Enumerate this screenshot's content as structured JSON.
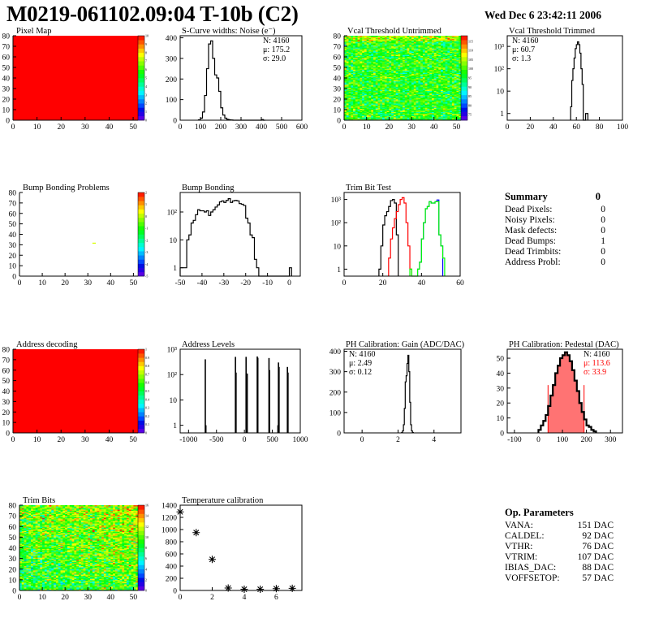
{
  "header": {
    "title": "M0219-061102.09:04 T-10b (C2)",
    "date": "Wed Dec  6 23:42:11 2006"
  },
  "summary": {
    "title": "Summary",
    "value": "0",
    "rows": [
      {
        "label": "Dead Pixels:",
        "value": "0"
      },
      {
        "label": "Noisy Pixels:",
        "value": "0"
      },
      {
        "label": "Mask defects:",
        "value": "0"
      },
      {
        "label": "Dead Bumps:",
        "value": "1"
      },
      {
        "label": "Dead Trimbits:",
        "value": "0"
      },
      {
        "label": "Address Probl:",
        "value": "0"
      }
    ]
  },
  "op_parameters": {
    "title": "Op. Parameters",
    "rows": [
      {
        "label": "VANA:",
        "value": "151 DAC"
      },
      {
        "label": "CALDEL:",
        "value": "92 DAC"
      },
      {
        "label": "VTHR:",
        "value": "76 DAC"
      },
      {
        "label": "VTRIM:",
        "value": "107 DAC"
      },
      {
        "label": "IBIAS_DAC:",
        "value": "88 DAC"
      },
      {
        "label": "VOFFSETOP:",
        "value": "57 DAC"
      }
    ]
  },
  "colors": {
    "palette": "rainbow purple-to-red",
    "hist_line": "#000000",
    "pedestal_fill": "#ff0000",
    "trim_series": [
      "#000000",
      "#ff0000",
      "#0000ff",
      "#00ff00"
    ]
  },
  "chart_data": [
    {
      "id": "pixel-map",
      "type": "heatmap",
      "title": "Pixel Map",
      "xlim": [
        0,
        52
      ],
      "ylim": [
        0,
        80
      ],
      "xticks": [
        "0",
        "10",
        "20",
        "30",
        "40",
        "50"
      ],
      "yticks": [
        "0",
        "10",
        "20",
        "30",
        "40",
        "50",
        "60",
        "70",
        "80"
      ],
      "zlim": [
        0,
        10
      ],
      "zticks": [
        "0",
        "1",
        "2",
        "3",
        "4",
        "5",
        "6",
        "7",
        "8",
        "9",
        "10"
      ],
      "uniform_value": 10
    },
    {
      "id": "noise",
      "type": "bar",
      "title": "S-Curve widths: Noise (e⁻)",
      "xlim": [
        0,
        600
      ],
      "ylim": [
        0,
        410
      ],
      "xticks": [
        "0",
        "100",
        "200",
        "300",
        "400",
        "500",
        "600"
      ],
      "yticks": [
        "0",
        "100",
        "200",
        "300",
        "400"
      ],
      "series": [
        {
          "x_start": 90,
          "bin": 10,
          "values": [
            2,
            10,
            40,
            120,
            250,
            370,
            385,
            300,
            220,
            205,
            140,
            60,
            25,
            10,
            4,
            2,
            1,
            0,
            0,
            0,
            0,
            0,
            0,
            0,
            0,
            0,
            0,
            0,
            0,
            0,
            0,
            3,
            0
          ]
        }
      ],
      "stats": [
        "N: 4160",
        "μ: 175.2",
        "σ: 29.0"
      ],
      "stats_pos": "top-right"
    },
    {
      "id": "vcal-untrimmed",
      "type": "heatmap",
      "title": "Vcal Threshold Untrimmed",
      "xlim": [
        0,
        52
      ],
      "ylim": [
        0,
        80
      ],
      "xticks": [
        "0",
        "10",
        "20",
        "30",
        "40",
        "50"
      ],
      "yticks": [
        "0",
        "10",
        "20",
        "30",
        "40",
        "50",
        "60",
        "70",
        "80"
      ],
      "zlim": [
        72,
        118
      ],
      "zticks": [
        "75",
        "80",
        "85",
        "90",
        "95",
        "100",
        "105",
        "110",
        "115"
      ],
      "z_mean": 98,
      "z_spread": 5
    },
    {
      "id": "vcal-trimmed",
      "type": "bar",
      "log_y": true,
      "title": "Vcal Threshold Trimmed",
      "xlim": [
        0,
        100
      ],
      "ylim": [
        0.5,
        3000
      ],
      "xticks": [
        "0",
        "20",
        "40",
        "60",
        "80",
        "100"
      ],
      "yticks": [
        {
          "v": 1,
          "t": "1"
        },
        {
          "v": 10,
          "t": "10"
        },
        {
          "v": 100,
          "t": "10²"
        },
        {
          "v": 1000,
          "t": "10³"
        }
      ],
      "series": [
        {
          "x_start": 55,
          "bin": 1,
          "values": [
            2,
            30,
            100,
            300,
            800,
            1200,
            1600,
            1200,
            500,
            100,
            20,
            0,
            0,
            1,
            1
          ]
        }
      ],
      "stats": [
        "N: 4160",
        "μ: 60.7",
        "σ:  1.3"
      ],
      "stats_pos": "top-left"
    },
    {
      "id": "bump-problems",
      "type": "heatmap",
      "title": "Bump Bonding Problems",
      "xlim": [
        0,
        52
      ],
      "ylim": [
        0,
        80
      ],
      "xticks": [
        "0",
        "10",
        "20",
        "30",
        "40",
        "50"
      ],
      "yticks": [
        "0",
        "10",
        "20",
        "30",
        "40",
        "50",
        "60",
        "70",
        "80"
      ],
      "zlim": [
        -5,
        2
      ],
      "zticks": [
        "-5",
        "-4",
        "-3",
        "-2",
        "-1",
        "0",
        "1",
        "2"
      ],
      "cells": [
        [
          32,
          31,
          0.2
        ]
      ]
    },
    {
      "id": "bump-bonding",
      "type": "bar",
      "log_y": true,
      "title": "Bump Bonding",
      "xlim": [
        -50,
        5
      ],
      "ylim": [
        0.5,
        500
      ],
      "xticks": [
        "-50",
        "-40",
        "-30",
        "-20",
        "-10",
        "0"
      ],
      "yticks": [
        {
          "v": 1,
          "t": "1"
        },
        {
          "v": 10,
          "t": "10"
        },
        {
          "v": 100,
          "t": "10²"
        }
      ],
      "series": [
        {
          "x_start": -50,
          "bin": 1,
          "values": [
            1,
            1,
            1,
            10,
            15,
            40,
            50,
            80,
            120,
            110,
            110,
            100,
            110,
            75,
            100,
            120,
            150,
            180,
            230,
            250,
            220,
            260,
            300,
            220,
            250,
            260,
            250,
            200,
            190,
            170,
            60,
            40,
            15,
            12,
            2,
            1,
            0,
            0,
            0,
            0,
            0,
            0,
            0,
            0,
            0,
            0,
            0,
            0,
            0,
            0,
            1
          ]
        }
      ]
    },
    {
      "id": "trim-bit-test",
      "type": "bar",
      "log_y": true,
      "title": "Trim Bit Test",
      "xlim": [
        0,
        60
      ],
      "ylim": [
        0.5,
        2000
      ],
      "xticks": [
        "0",
        "20",
        "40",
        "60"
      ],
      "yticks": [
        {
          "v": 1,
          "t": "1"
        },
        {
          "v": 10,
          "t": "10"
        },
        {
          "v": 100,
          "t": "10²"
        },
        {
          "v": 1000,
          "t": "10³"
        }
      ],
      "series": [
        {
          "color": "#000000",
          "x_start": 18,
          "bin": 1,
          "values": [
            1,
            10,
            80,
            200,
            300,
            500,
            900,
            1000,
            700,
            30
          ]
        },
        {
          "color": "#ff0000",
          "x_start": 23,
          "bin": 1,
          "values": [
            3,
            20,
            60,
            150,
            300,
            600,
            1000,
            1200,
            700,
            100,
            10,
            1
          ]
        },
        {
          "color": "#0000ff",
          "x_start": 38,
          "bin": 1,
          "values": [
            1,
            2,
            20,
            100,
            400,
            500,
            800,
            700,
            700,
            800,
            950,
            30,
            10
          ]
        },
        {
          "color": "#00ff00",
          "x_start": 34,
          "bin": 1,
          "values": [
            1,
            0,
            0,
            0,
            1,
            2,
            20,
            100,
            400,
            500,
            800,
            700,
            700,
            800,
            800,
            30,
            10,
            3
          ]
        }
      ]
    },
    {
      "id": "address-decoding",
      "type": "heatmap",
      "title": "Address decoding",
      "xlim": [
        0,
        52
      ],
      "ylim": [
        0,
        80
      ],
      "xticks": [
        "0",
        "10",
        "20",
        "30",
        "40",
        "50"
      ],
      "yticks": [
        "0",
        "10",
        "20",
        "30",
        "40",
        "50",
        "60",
        "70",
        "80"
      ],
      "zlim": [
        0,
        1
      ],
      "zticks": [
        "0",
        "0.1",
        "0.2",
        "0.3",
        "0.4",
        "0.5",
        "0.6",
        "0.7",
        "0.8",
        "0.9",
        "1"
      ],
      "uniform_value": 1
    },
    {
      "id": "address-levels",
      "type": "spikes",
      "log_y": true,
      "title": "Address Levels",
      "xlim": [
        -1150,
        1000
      ],
      "ylim": [
        0.5,
        1000
      ],
      "xticks": [
        "-1000",
        "-500",
        "0",
        "500",
        "1000"
      ],
      "yticks": [
        {
          "v": 1,
          "t": "1"
        },
        {
          "v": 10,
          "t": "10"
        },
        {
          "v": 100,
          "t": "10²"
        },
        {
          "v": 1000,
          "t": "10³"
        }
      ],
      "spikes": [
        [
          -700,
          400
        ],
        [
          -690,
          1
        ],
        [
          -160,
          500
        ],
        [
          -150,
          120
        ],
        [
          30,
          500
        ],
        [
          50,
          110
        ],
        [
          230,
          520
        ],
        [
          240,
          460
        ],
        [
          440,
          450
        ],
        [
          450,
          150
        ],
        [
          600,
          1
        ],
        [
          610,
          300
        ],
        [
          620,
          200
        ],
        [
          770,
          200
        ],
        [
          780,
          120
        ]
      ]
    },
    {
      "id": "ph-gain",
      "type": "bar",
      "title": "PH Calibration: Gain (ADC/DAC)",
      "xlim": [
        -1,
        5.5
      ],
      "ylim": [
        0,
        410
      ],
      "xticks": [
        "0",
        "2",
        "4"
      ],
      "yticks": [
        "0",
        "100",
        "200",
        "300",
        "400"
      ],
      "series": [
        {
          "x_start": 2.2,
          "bin": 0.05,
          "values": [
            2,
            10,
            40,
            120,
            250,
            280,
            340,
            380,
            300,
            150,
            40,
            10,
            2
          ]
        }
      ],
      "stats": [
        "N: 4160",
        "μ: 2.49",
        "σ: 0.12"
      ],
      "stats_pos": "top-left"
    },
    {
      "id": "ph-pedestal",
      "type": "bar",
      "title": "PH Calibration: Pedestal (DAC)",
      "xlim": [
        -130,
        350
      ],
      "ylim": [
        0,
        56
      ],
      "xticks": [
        "-100",
        "0",
        "100",
        "200",
        "300"
      ],
      "yticks": [
        "0",
        "10",
        "20",
        "30",
        "40",
        "50"
      ],
      "series": [
        {
          "x_start": 0,
          "bin": 10,
          "values": [
            2,
            5,
            8,
            12,
            18,
            25,
            32,
            40,
            45,
            50,
            52,
            54,
            52,
            48,
            42,
            35,
            28,
            20,
            14,
            9,
            5,
            4,
            2,
            1
          ]
        }
      ],
      "fit_range": [
        40,
        190
      ],
      "fit_line_height": 32,
      "stats": [
        "N: 4160",
        "μ: 113.6",
        "σ: 33.9"
      ],
      "stats_colors": [
        "#000000",
        "#ff0000",
        "#ff0000"
      ],
      "stats_pos": "top-right"
    },
    {
      "id": "trim-bits",
      "type": "heatmap",
      "title": "Trim Bits",
      "xlim": [
        0,
        52
      ],
      "ylim": [
        0,
        80
      ],
      "xticks": [
        "0",
        "10",
        "20",
        "30",
        "40",
        "50"
      ],
      "yticks": [
        "0",
        "10",
        "20",
        "30",
        "40",
        "50",
        "60",
        "70",
        "80"
      ],
      "zlim": [
        0,
        16
      ],
      "zticks": [
        "0",
        "2",
        "4",
        "6",
        "8",
        "10",
        "12",
        "14",
        "16"
      ],
      "z_mean": 9,
      "z_spread": 2
    },
    {
      "id": "temperature-calibration",
      "type": "scatter",
      "title": "Temperature calibration",
      "xlim": [
        0,
        7.6
      ],
      "ylim": [
        0,
        1400
      ],
      "xticks": [
        "0",
        "2",
        "4",
        "6"
      ],
      "yticks": [
        "0",
        "200",
        "400",
        "600",
        "800",
        "1000",
        "1200",
        "1400"
      ],
      "points": [
        [
          0,
          1290
        ],
        [
          1,
          950
        ],
        [
          2,
          510
        ],
        [
          3,
          40
        ],
        [
          4,
          20
        ],
        [
          5,
          20
        ],
        [
          6,
          30
        ],
        [
          7,
          35
        ]
      ]
    }
  ]
}
